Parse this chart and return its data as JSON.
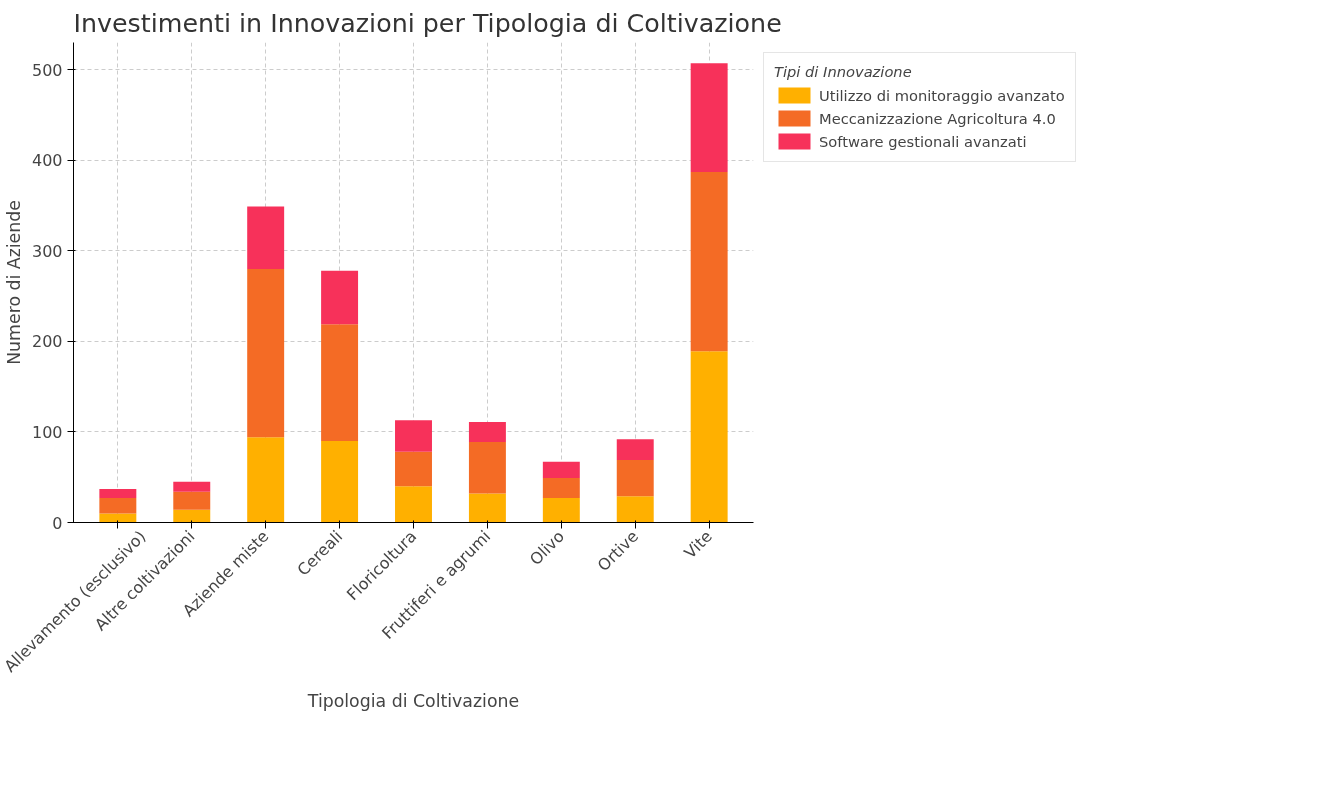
{
  "chart_data": {
    "type": "bar",
    "stacked": true,
    "title": "Investimenti in Innovazioni per Tipologia di Coltivazione",
    "xlabel": "Tipologia di Coltivazione",
    "ylabel": "Numero di Aziende",
    "legend_title": "Tipi di Innovazione",
    "legend": "top right",
    "grid": true,
    "categories": [
      "Allevamento (esclusivo)",
      "Altre coltivazioni",
      "Aziende miste",
      "Cereali",
      "Floricoltura",
      "Fruttiferi e agrumi",
      "Olivo",
      "Ortive",
      "Vite"
    ],
    "ylim": [
      0,
      530
    ],
    "yticks": [
      0,
      100,
      200,
      300,
      400,
      500
    ],
    "series": [
      {
        "name": "Utilizzo di monitoraggio avanzato",
        "color": "#ffb000",
        "values": [
          10,
          14,
          94,
          90,
          40,
          32,
          27,
          29,
          189
        ]
      },
      {
        "name": "Meccanizzazione Agricoltura 4.0",
        "color": "#f46b25",
        "values": [
          17,
          20,
          186,
          129,
          38,
          57,
          22,
          40,
          198
        ]
      },
      {
        "name": "Software gestionali avanzati",
        "color": "#f7315a",
        "values": [
          10,
          11,
          69,
          59,
          35,
          22,
          18,
          23,
          120
        ]
      }
    ]
  }
}
